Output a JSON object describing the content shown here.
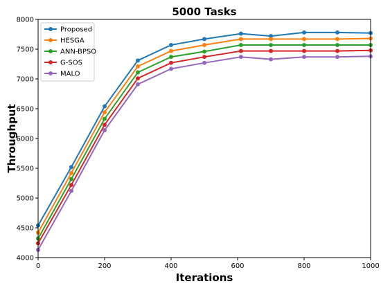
{
  "chart_data": {
    "type": "line",
    "title": "5000 Tasks",
    "xlabel": "Iterations",
    "ylabel": "Throughput",
    "xlim": [
      0,
      1000
    ],
    "ylim": [
      4000,
      8000
    ],
    "xticks": [
      0,
      200,
      400,
      600,
      800,
      1000
    ],
    "yticks": [
      4000,
      4500,
      5000,
      5500,
      6000,
      6500,
      7000,
      7500,
      8000
    ],
    "grid": false,
    "legend_position": "top-left",
    "x": [
      0,
      100,
      200,
      300,
      400,
      500,
      610,
      700,
      800,
      900,
      1000
    ],
    "series": [
      {
        "name": "Proposed",
        "color": "#1f77b4",
        "values": [
          4540,
          5520,
          6540,
          7310,
          7570,
          7670,
          7760,
          7720,
          7780,
          7780,
          7770
        ]
      },
      {
        "name": "HESGA",
        "color": "#ff7f0e",
        "values": [
          4420,
          5420,
          6440,
          7210,
          7470,
          7570,
          7670,
          7670,
          7670,
          7670,
          7680
        ]
      },
      {
        "name": "ANN-BPSO",
        "color": "#2ca02c",
        "values": [
          4320,
          5320,
          6330,
          7110,
          7370,
          7460,
          7570,
          7570,
          7570,
          7570,
          7570
        ]
      },
      {
        "name": "G-SOS",
        "color": "#d62728",
        "values": [
          4240,
          5220,
          6230,
          7010,
          7270,
          7370,
          7470,
          7470,
          7470,
          7470,
          7480
        ]
      },
      {
        "name": "MALO",
        "color": "#9467bd",
        "values": [
          4130,
          5120,
          6140,
          6910,
          7170,
          7270,
          7370,
          7330,
          7370,
          7370,
          7380
        ]
      }
    ]
  }
}
